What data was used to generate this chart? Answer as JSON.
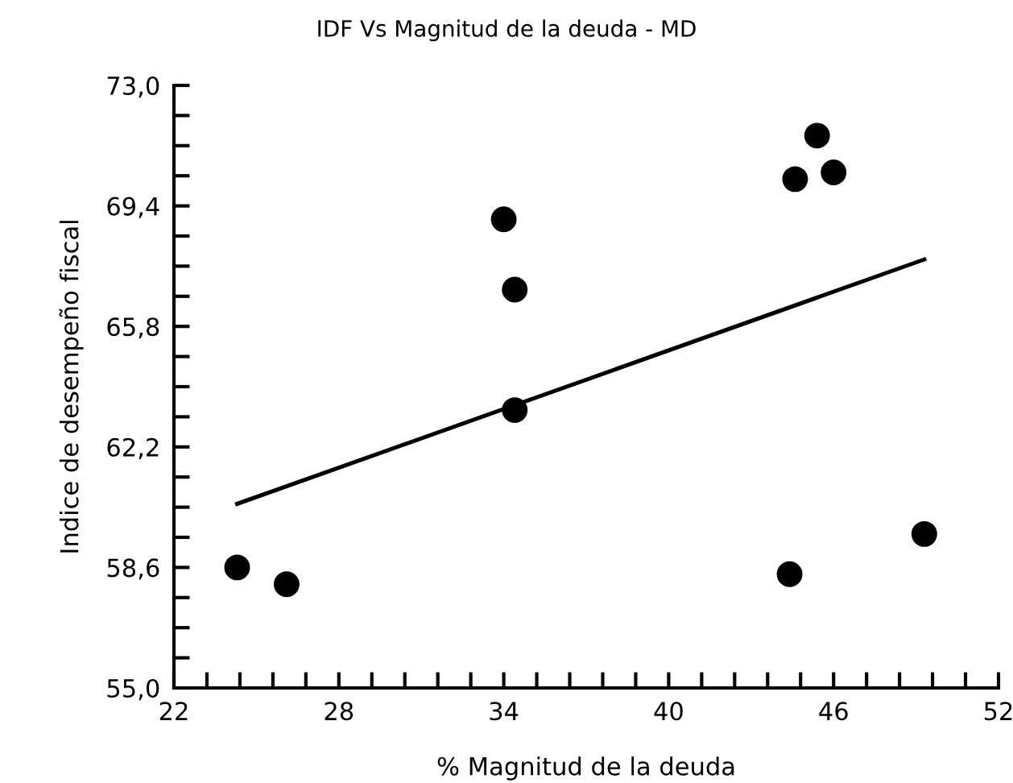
{
  "chart_data": {
    "type": "scatter",
    "title": "IDF Vs Magnitud de la deuda - MD",
    "xlabel": "% Magnitud de la deuda",
    "ylabel": "Indice de desempeño fiscal",
    "series": [
      {
        "color": "#000000",
        "marker": "circle",
        "x": [
          24.3,
          26.1,
          34.0,
          34.4,
          34.4,
          44.6,
          45.4,
          46.0,
          44.4,
          49.3
        ],
        "values": [
          58.6,
          58.1,
          69.0,
          66.9,
          63.3,
          70.2,
          71.5,
          70.4,
          58.4,
          59.6
        ]
      },
      {
        "type": "line",
        "color": "#000000",
        "marker": "none",
        "x": [
          24.3,
          49.3
        ],
        "values": [
          60.5,
          67.8
        ]
      }
    ],
    "xlim": [
      22,
      52
    ],
    "ylim": [
      55,
      73
    ],
    "xticks": [
      22,
      {
        "value": 23.2,
        "label": null
      },
      {
        "value": 24.4,
        "label": null
      },
      {
        "value": 25.6,
        "label": null
      },
      {
        "value": 26.8,
        "label": null
      },
      28,
      {
        "value": 29.2,
        "label": null
      },
      {
        "value": 30.4,
        "label": null
      },
      {
        "value": 31.6,
        "label": null
      },
      {
        "value": 32.8,
        "label": null
      },
      34,
      {
        "value": 35.2,
        "label": null
      },
      {
        "value": 36.4,
        "label": null
      },
      {
        "value": 37.6,
        "label": null
      },
      {
        "value": 38.8,
        "label": null
      },
      40,
      {
        "value": 41.2,
        "label": null
      },
      {
        "value": 42.4,
        "label": null
      },
      {
        "value": 43.6,
        "label": null
      },
      {
        "value": 44.8,
        "label": null
      },
      46,
      {
        "value": 47.2,
        "label": null
      },
      {
        "value": 48.4,
        "label": null
      },
      {
        "value": 49.6,
        "label": null
      },
      {
        "value": 50.8,
        "label": null
      },
      52
    ],
    "yticks": [
      {
        "value": 55,
        "label": "55,0"
      },
      {
        "value": 55.9,
        "label": null
      },
      {
        "value": 56.8,
        "label": null
      },
      {
        "value": 57.7,
        "label": null
      },
      {
        "value": 58.6,
        "label": "58,6"
      },
      {
        "value": 59.5,
        "label": null
      },
      {
        "value": 60.4,
        "label": null
      },
      {
        "value": 61.3,
        "label": null
      },
      {
        "value": 62.2,
        "label": "62,2"
      },
      {
        "value": 63.1,
        "label": null
      },
      {
        "value": 64,
        "label": null
      },
      {
        "value": 64.9,
        "label": null
      },
      {
        "value": 65.8,
        "label": "65,8"
      },
      {
        "value": 66.7,
        "label": null
      },
      {
        "value": 67.6,
        "label": null
      },
      {
        "value": 68.5,
        "label": null
      },
      {
        "value": 69.4,
        "label": "69,4"
      },
      {
        "value": 70.3,
        "label": null
      },
      {
        "value": 71.2,
        "label": null
      },
      {
        "value": 72.1,
        "label": null
      },
      {
        "value": 73,
        "label": "73,0"
      }
    ],
    "grid": false,
    "legend": false
  }
}
